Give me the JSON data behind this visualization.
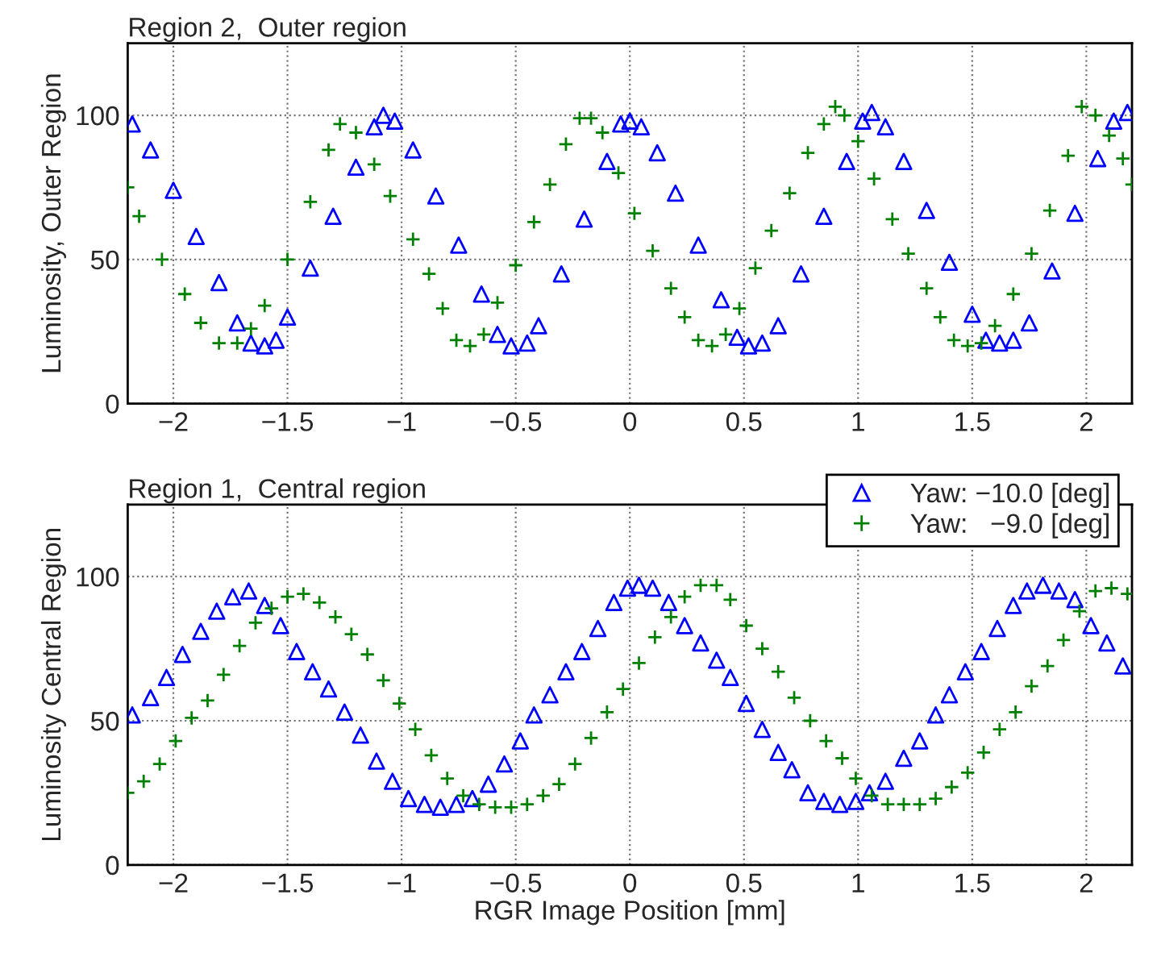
{
  "chart_data": [
    {
      "type": "scatter",
      "title": "Region 2,  Outer region",
      "ylabel": "Luminosity, Outer Region",
      "xlim": [
        -2.2,
        2.2
      ],
      "ylim": [
        0,
        125
      ],
      "xticks": [
        {
          "value": -2,
          "label": "−2"
        },
        {
          "value": -1.5,
          "label": "−1.5"
        },
        {
          "value": -1,
          "label": "−1"
        },
        {
          "value": -0.5,
          "label": "−0.5"
        },
        0,
        0.5,
        1,
        1.5,
        2
      ],
      "yticks": [
        0,
        50,
        100
      ],
      "grid": true,
      "legend": false,
      "series": [
        {
          "color": "#0000ff",
          "marker": "triangle",
          "x": [
            -2.18,
            -2.1,
            -2.0,
            -1.9,
            -1.8,
            -1.72,
            -1.66,
            -1.6,
            -1.55,
            -1.5,
            -1.4,
            -1.3,
            -1.2,
            -1.12,
            -1.08,
            -1.03,
            -0.95,
            -0.85,
            -0.75,
            -0.65,
            -0.58,
            -0.52,
            -0.45,
            -0.4,
            -0.3,
            -0.2,
            -0.1,
            -0.04,
            0.0,
            0.05,
            0.12,
            0.2,
            0.3,
            0.4,
            0.47,
            0.52,
            0.58,
            0.65,
            0.75,
            0.85,
            0.95,
            1.02,
            1.06,
            1.12,
            1.2,
            1.3,
            1.4,
            1.5,
            1.56,
            1.62,
            1.68,
            1.75,
            1.85,
            1.95,
            2.05,
            2.12,
            2.18
          ],
          "values": [
            97,
            88,
            74,
            58,
            42,
            28,
            21,
            20,
            22,
            30,
            47,
            65,
            82,
            96,
            100,
            98,
            88,
            72,
            55,
            38,
            24,
            20,
            21,
            27,
            45,
            64,
            84,
            97,
            98,
            96,
            87,
            73,
            55,
            36,
            23,
            20,
            21,
            27,
            45,
            65,
            84,
            98,
            101,
            96,
            84,
            67,
            49,
            31,
            22,
            21,
            22,
            28,
            46,
            66,
            85,
            98,
            101
          ]
        },
        {
          "color": "#008000",
          "marker": "cross",
          "x": [
            -2.2,
            -2.15,
            -2.05,
            -1.95,
            -1.88,
            -1.8,
            -1.72,
            -1.66,
            -1.6,
            -1.5,
            -1.4,
            -1.32,
            -1.27,
            -1.2,
            -1.12,
            -1.05,
            -0.95,
            -0.88,
            -0.82,
            -0.76,
            -0.7,
            -0.64,
            -0.58,
            -0.5,
            -0.42,
            -0.35,
            -0.28,
            -0.22,
            -0.17,
            -0.12,
            -0.05,
            0.02,
            0.1,
            0.18,
            0.24,
            0.3,
            0.36,
            0.42,
            0.48,
            0.55,
            0.62,
            0.7,
            0.78,
            0.85,
            0.9,
            0.94,
            1.0,
            1.07,
            1.15,
            1.22,
            1.3,
            1.36,
            1.42,
            1.48,
            1.54,
            1.6,
            1.68,
            1.76,
            1.84,
            1.92,
            1.98,
            2.04,
            2.1,
            2.16,
            2.2
          ],
          "values": [
            75,
            65,
            50,
            38,
            28,
            21,
            21,
            26,
            34,
            50,
            70,
            88,
            97,
            94,
            83,
            72,
            57,
            45,
            33,
            22,
            20,
            24,
            35,
            48,
            63,
            76,
            90,
            99,
            99,
            94,
            80,
            66,
            53,
            40,
            30,
            22,
            20,
            24,
            33,
            47,
            60,
            73,
            87,
            97,
            103,
            100,
            91,
            78,
            64,
            52,
            40,
            30,
            22,
            20,
            21,
            27,
            38,
            52,
            67,
            86,
            103,
            100,
            93,
            85,
            76
          ]
        }
      ]
    },
    {
      "type": "scatter",
      "title": "Region 1,  Central region",
      "ylabel": "Luminosity Central Region",
      "xlabel": "RGR Image Position [mm]",
      "xlim": [
        -2.2,
        2.2
      ],
      "ylim": [
        0,
        125
      ],
      "xticks": [
        {
          "value": -2,
          "label": "−2"
        },
        {
          "value": -1.5,
          "label": "−1.5"
        },
        {
          "value": -1,
          "label": "−1"
        },
        {
          "value": -0.5,
          "label": "−0.5"
        },
        0,
        0.5,
        1,
        1.5,
        2
      ],
      "yticks": [
        0,
        50,
        100
      ],
      "grid": true,
      "legend": "top right",
      "series": [
        {
          "name": "Yaw: −10.0 [deg]",
          "color": "#0000ff",
          "marker": "triangle",
          "x": [
            -2.18,
            -2.1,
            -2.03,
            -1.96,
            -1.88,
            -1.81,
            -1.74,
            -1.67,
            -1.6,
            -1.53,
            -1.46,
            -1.39,
            -1.32,
            -1.25,
            -1.18,
            -1.11,
            -1.04,
            -0.97,
            -0.9,
            -0.83,
            -0.76,
            -0.69,
            -0.62,
            -0.55,
            -0.48,
            -0.42,
            -0.35,
            -0.28,
            -0.21,
            -0.14,
            -0.07,
            -0.01,
            0.04,
            0.1,
            0.17,
            0.24,
            0.31,
            0.38,
            0.44,
            0.51,
            0.58,
            0.65,
            0.71,
            0.78,
            0.85,
            0.92,
            0.99,
            1.05,
            1.12,
            1.2,
            1.27,
            1.34,
            1.4,
            1.47,
            1.54,
            1.61,
            1.68,
            1.74,
            1.81,
            1.88,
            1.95,
            2.02,
            2.09,
            2.16
          ],
          "values": [
            52,
            58,
            65,
            73,
            81,
            88,
            93,
            95,
            90,
            83,
            74,
            67,
            61,
            53,
            45,
            36,
            29,
            23,
            21,
            20,
            21,
            23,
            28,
            35,
            43,
            52,
            59,
            67,
            74,
            82,
            91,
            96,
            97,
            96,
            91,
            83,
            77,
            71,
            65,
            56,
            47,
            39,
            33,
            25,
            22,
            21,
            22,
            25,
            29,
            37,
            43,
            52,
            59,
            67,
            74,
            82,
            90,
            95,
            97,
            95,
            92,
            83,
            77,
            69
          ]
        },
        {
          "name": "Yaw:   −9.0 [deg]",
          "color": "#008000",
          "marker": "cross",
          "x": [
            -2.2,
            -2.13,
            -2.06,
            -1.99,
            -1.92,
            -1.85,
            -1.78,
            -1.71,
            -1.64,
            -1.57,
            -1.5,
            -1.43,
            -1.36,
            -1.29,
            -1.22,
            -1.15,
            -1.08,
            -1.01,
            -0.94,
            -0.87,
            -0.8,
            -0.73,
            -0.66,
            -0.59,
            -0.52,
            -0.45,
            -0.38,
            -0.31,
            -0.24,
            -0.17,
            -0.1,
            -0.03,
            0.04,
            0.11,
            0.18,
            0.24,
            0.31,
            0.38,
            0.44,
            0.51,
            0.58,
            0.65,
            0.72,
            0.79,
            0.86,
            0.93,
            0.99,
            1.06,
            1.13,
            1.2,
            1.27,
            1.34,
            1.41,
            1.48,
            1.55,
            1.62,
            1.69,
            1.76,
            1.83,
            1.9,
            1.97,
            2.04,
            2.11,
            2.18
          ],
          "values": [
            25,
            29,
            35,
            43,
            51,
            57,
            66,
            76,
            84,
            89,
            93,
            94,
            91,
            86,
            80,
            73,
            64,
            56,
            47,
            38,
            30,
            24,
            21,
            20,
            20,
            21,
            24,
            28,
            35,
            44,
            53,
            61,
            70,
            79,
            86,
            93,
            97,
            97,
            92,
            83,
            75,
            67,
            58,
            50,
            43,
            37,
            30,
            24,
            21,
            21,
            21,
            23,
            27,
            32,
            39,
            47,
            53,
            62,
            69,
            78,
            88,
            95,
            96,
            94
          ]
        }
      ]
    }
  ]
}
